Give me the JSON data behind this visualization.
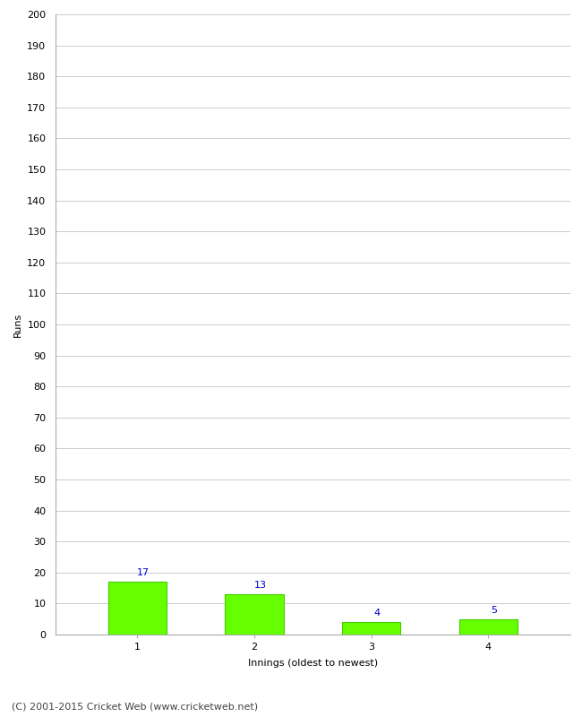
{
  "categories": [
    "1",
    "2",
    "3",
    "4"
  ],
  "values": [
    17,
    13,
    4,
    5
  ],
  "bar_color": "#66ff00",
  "bar_edge_color": "#44cc00",
  "label_color": "#0000cc",
  "title": "",
  "ylabel": "Runs",
  "xlabel": "Innings (oldest to newest)",
  "ylim": [
    0,
    200
  ],
  "yticks": [
    0,
    10,
    20,
    30,
    40,
    50,
    60,
    70,
    80,
    90,
    100,
    110,
    120,
    130,
    140,
    150,
    160,
    170,
    180,
    190,
    200
  ],
  "footer": "(C) 2001-2015 Cricket Web (www.cricketweb.net)",
  "background_color": "#ffffff",
  "grid_color": "#cccccc",
  "label_fontsize": 8,
  "axis_fontsize": 8,
  "footer_fontsize": 8,
  "bar_width": 0.5
}
